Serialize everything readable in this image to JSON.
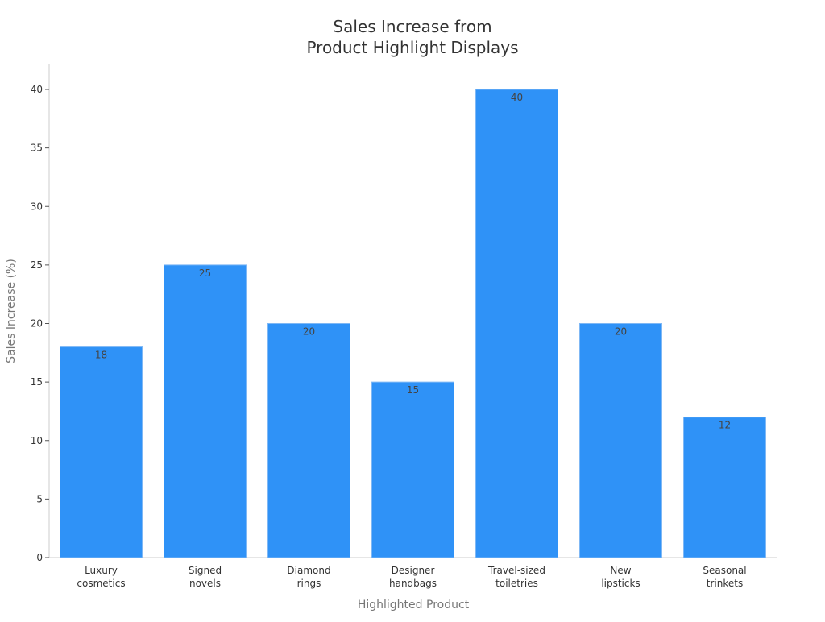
{
  "chart_data": {
    "type": "bar",
    "title": "Sales Increase from Product Highlight Displays",
    "title_lines": [
      "Sales Increase from",
      "Product Highlight Displays"
    ],
    "xlabel": "Highlighted Product",
    "ylabel": "Sales Increase (%)",
    "categories": [
      "Luxury cosmetics",
      "Signed novels",
      "Diamond rings",
      "Designer handbags",
      "Travel-sized toiletries",
      "New lipsticks",
      "Seasonal trinkets"
    ],
    "category_lines": [
      [
        "Luxury",
        "cosmetics"
      ],
      [
        "Signed",
        "novels"
      ],
      [
        "Diamond",
        "rings"
      ],
      [
        "Designer",
        "handbags"
      ],
      [
        "Travel-sized",
        "toiletries"
      ],
      [
        "New",
        "lipsticks"
      ],
      [
        "Seasonal",
        "trinkets"
      ]
    ],
    "values": [
      18,
      25,
      20,
      15,
      40,
      20,
      12
    ],
    "ylim": [
      0,
      42
    ],
    "yticks": [
      0,
      5,
      10,
      15,
      20,
      25,
      30,
      35,
      40
    ],
    "grid": false,
    "legend": "none",
    "bar_color": "#2f92f7"
  }
}
